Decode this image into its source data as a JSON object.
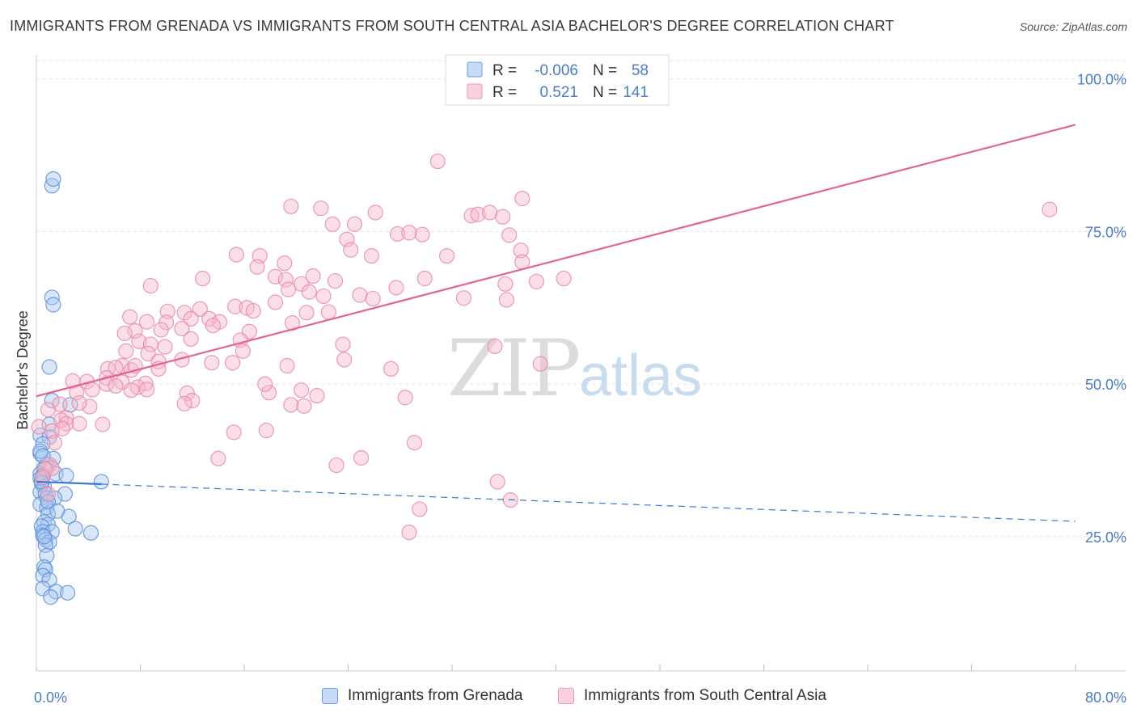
{
  "header": {
    "title": "IMMIGRANTS FROM GRENADA VS IMMIGRANTS FROM SOUTH CENTRAL ASIA BACHELOR'S DEGREE CORRELATION CHART",
    "source": "Source: ZipAtlas.com"
  },
  "watermark": {
    "zip": "ZIP",
    "atlas": "atlas"
  },
  "stats_box": {
    "rows": [
      {
        "r_label": "R =",
        "r_value": "-0.006",
        "n_label": "N =",
        "n_value": "58"
      },
      {
        "r_label": "R =",
        "r_value": "0.521",
        "n_label": "N =",
        "n_value": "141"
      }
    ]
  },
  "colors": {
    "blue_fill": "#a9c8f0",
    "blue_stroke": "#5b8fd8",
    "blue_line": "#3a78d4",
    "pink_fill": "#f6b8cb",
    "pink_stroke": "#e889a6",
    "pink_line": "#e0668f",
    "axis_text": "#4a7cc7",
    "grid": "#e3e3e3"
  },
  "chart_data": {
    "type": "scatter",
    "title": "IMMIGRANTS FROM GRENADA VS IMMIGRANTS FROM SOUTH CENTRAL ASIA BACHELOR'S DEGREE CORRELATION CHART",
    "xlabel": "",
    "ylabel": "Bachelor's Degree",
    "xlim": [
      0,
      80
    ],
    "ylim": [
      3,
      103
    ],
    "x_ticks_labeled": [
      "0.0%",
      "80.0%"
    ],
    "y_ticks": [
      25,
      50,
      75,
      100
    ],
    "y_tick_labels": [
      "25.0%",
      "50.0%",
      "75.0%",
      "100.0%"
    ],
    "grid": true,
    "legend_position": "bottom",
    "series": [
      {
        "name": "Immigrants from Grenada",
        "color": "blue",
        "R": -0.006,
        "N": 58,
        "trend": {
          "x0": 0,
          "y0": 34.0,
          "x1": 80,
          "y1": 27.5,
          "solid_until_x": 5
        },
        "points": [
          [
            1.2,
            82.5
          ],
          [
            1.3,
            83.6
          ],
          [
            1.2,
            64.2
          ],
          [
            1.3,
            63.0
          ],
          [
            1.0,
            52.8
          ],
          [
            1.2,
            47.3
          ],
          [
            2.6,
            46.6
          ],
          [
            1.0,
            43.4
          ],
          [
            0.3,
            41.6
          ],
          [
            1.0,
            41.3
          ],
          [
            0.5,
            40.2
          ],
          [
            0.3,
            38.6
          ],
          [
            1.3,
            37.8
          ],
          [
            0.8,
            36.8
          ],
          [
            0.6,
            36.2
          ],
          [
            0.3,
            35.3
          ],
          [
            0.5,
            35.0
          ],
          [
            1.5,
            35.3
          ],
          [
            2.3,
            35.0
          ],
          [
            0.3,
            34.5
          ],
          [
            0.4,
            33.7
          ],
          [
            5.0,
            34.0
          ],
          [
            0.6,
            33.2
          ],
          [
            0.3,
            32.3
          ],
          [
            0.7,
            32.0
          ],
          [
            2.2,
            32.0
          ],
          [
            0.8,
            31.3
          ],
          [
            1.4,
            31.3
          ],
          [
            0.3,
            30.3
          ],
          [
            0.8,
            29.8
          ],
          [
            0.9,
            28.7
          ],
          [
            2.5,
            28.3
          ],
          [
            0.6,
            27.4
          ],
          [
            0.9,
            27.0
          ],
          [
            0.4,
            26.7
          ],
          [
            3.0,
            26.3
          ],
          [
            0.5,
            25.8
          ],
          [
            1.2,
            25.8
          ],
          [
            4.2,
            25.6
          ],
          [
            0.5,
            25.2
          ],
          [
            0.7,
            24.5
          ],
          [
            1.0,
            24.1
          ],
          [
            0.7,
            23.6
          ],
          [
            0.8,
            21.9
          ],
          [
            0.6,
            20.0
          ],
          [
            0.7,
            19.6
          ],
          [
            0.5,
            18.6
          ],
          [
            1.0,
            17.9
          ],
          [
            0.5,
            16.5
          ],
          [
            1.5,
            16.0
          ],
          [
            2.4,
            15.8
          ],
          [
            1.1,
            15.1
          ],
          [
            0.3,
            39.0
          ],
          [
            0.5,
            38.2
          ],
          [
            0.9,
            30.7
          ],
          [
            1.6,
            29.2
          ],
          [
            0.4,
            34.0
          ],
          [
            0.6,
            25.0
          ]
        ]
      },
      {
        "name": "Immigrants from South Central Asia",
        "color": "pink",
        "R": 0.521,
        "N": 141,
        "trend": {
          "x0": 0,
          "y0": 48.0,
          "x1": 80,
          "y1": 92.5
        },
        "points": [
          [
            30.9,
            86.5
          ],
          [
            78.0,
            78.6
          ],
          [
            37.4,
            80.4
          ],
          [
            19.6,
            79.1
          ],
          [
            21.9,
            78.8
          ],
          [
            26.1,
            78.1
          ],
          [
            33.5,
            77.6
          ],
          [
            35.9,
            77.4
          ],
          [
            34.0,
            77.8
          ],
          [
            34.9,
            78.1
          ],
          [
            22.8,
            76.2
          ],
          [
            24.5,
            76.2
          ],
          [
            29.7,
            74.5
          ],
          [
            27.8,
            74.6
          ],
          [
            28.7,
            74.8
          ],
          [
            36.4,
            74.4
          ],
          [
            23.9,
            73.7
          ],
          [
            24.2,
            72.0
          ],
          [
            37.3,
            71.9
          ],
          [
            15.4,
            71.2
          ],
          [
            17.2,
            71.0
          ],
          [
            25.8,
            71.0
          ],
          [
            31.6,
            71.0
          ],
          [
            19.1,
            69.8
          ],
          [
            37.4,
            70.0
          ],
          [
            17.0,
            69.2
          ],
          [
            12.8,
            67.3
          ],
          [
            18.4,
            67.6
          ],
          [
            19.2,
            67.1
          ],
          [
            21.3,
            67.7
          ],
          [
            29.9,
            67.3
          ],
          [
            8.8,
            66.1
          ],
          [
            20.4,
            66.4
          ],
          [
            23.0,
            66.9
          ],
          [
            27.7,
            65.8
          ],
          [
            38.5,
            66.8
          ],
          [
            40.6,
            67.3
          ],
          [
            36.1,
            66.4
          ],
          [
            19.4,
            65.5
          ],
          [
            21.0,
            65.1
          ],
          [
            24.9,
            64.6
          ],
          [
            25.9,
            64.0
          ],
          [
            32.9,
            64.1
          ],
          [
            22.1,
            64.4
          ],
          [
            18.4,
            63.4
          ],
          [
            15.3,
            62.7
          ],
          [
            16.2,
            62.5
          ],
          [
            12.6,
            62.3
          ],
          [
            16.7,
            62.0
          ],
          [
            10.1,
            61.9
          ],
          [
            11.4,
            61.7
          ],
          [
            20.8,
            61.7
          ],
          [
            22.5,
            61.8
          ],
          [
            7.2,
            61.0
          ],
          [
            8.5,
            60.2
          ],
          [
            10.0,
            60.1
          ],
          [
            11.9,
            60.7
          ],
          [
            13.3,
            60.7
          ],
          [
            14.1,
            60.2
          ],
          [
            19.7,
            60.0
          ],
          [
            13.6,
            59.6
          ],
          [
            9.6,
            58.9
          ],
          [
            11.2,
            59.1
          ],
          [
            7.6,
            58.7
          ],
          [
            6.8,
            58.3
          ],
          [
            16.4,
            58.6
          ],
          [
            11.9,
            57.4
          ],
          [
            15.7,
            57.2
          ],
          [
            7.9,
            57.0
          ],
          [
            8.8,
            56.5
          ],
          [
            23.6,
            56.5
          ],
          [
            6.9,
            55.4
          ],
          [
            15.9,
            55.4
          ],
          [
            8.6,
            55.0
          ],
          [
            23.7,
            54.0
          ],
          [
            11.2,
            54.0
          ],
          [
            13.5,
            53.5
          ],
          [
            15.1,
            53.5
          ],
          [
            9.4,
            53.7
          ],
          [
            6.6,
            53.0
          ],
          [
            5.5,
            52.5
          ],
          [
            7.3,
            52.3
          ],
          [
            6.1,
            52.7
          ],
          [
            9.4,
            52.5
          ],
          [
            19.3,
            53.0
          ],
          [
            38.8,
            53.3
          ],
          [
            5.4,
            51.0
          ],
          [
            6.6,
            50.3
          ],
          [
            8.4,
            50.1
          ],
          [
            5.4,
            50.0
          ],
          [
            2.8,
            50.5
          ],
          [
            3.9,
            50.4
          ],
          [
            6.1,
            49.7
          ],
          [
            7.8,
            49.5
          ],
          [
            7.3,
            49.0
          ],
          [
            4.3,
            49.1
          ],
          [
            8.5,
            49.1
          ],
          [
            17.9,
            48.6
          ],
          [
            3.1,
            48.6
          ],
          [
            11.6,
            48.5
          ],
          [
            21.6,
            48.1
          ],
          [
            28.4,
            47.8
          ],
          [
            12.0,
            47.3
          ],
          [
            11.4,
            46.8
          ],
          [
            19.6,
            46.6
          ],
          [
            20.6,
            46.4
          ],
          [
            4.1,
            46.3
          ],
          [
            3.3,
            46.9
          ],
          [
            1.8,
            46.7
          ],
          [
            0.9,
            45.8
          ],
          [
            2.3,
            44.5
          ],
          [
            1.9,
            44.1
          ],
          [
            2.3,
            43.5
          ],
          [
            3.3,
            43.5
          ],
          [
            2.0,
            42.7
          ],
          [
            5.1,
            43.4
          ],
          [
            0.2,
            43.0
          ],
          [
            1.2,
            42.3
          ],
          [
            15.2,
            42.1
          ],
          [
            17.7,
            42.4
          ],
          [
            29.1,
            40.4
          ],
          [
            1.4,
            40.4
          ],
          [
            25.0,
            37.9
          ],
          [
            14.0,
            37.8
          ],
          [
            23.1,
            36.7
          ],
          [
            1.0,
            36.8
          ],
          [
            1.2,
            36.2
          ],
          [
            0.7,
            36.1
          ],
          [
            0.5,
            34.7
          ],
          [
            0.9,
            32.0
          ],
          [
            35.5,
            34.0
          ],
          [
            36.5,
            31.0
          ],
          [
            29.5,
            29.5
          ],
          [
            28.7,
            25.7
          ],
          [
            17.6,
            50.0
          ],
          [
            20.4,
            49.0
          ],
          [
            27.3,
            52.5
          ],
          [
            7.6,
            53.0
          ],
          [
            9.9,
            56.1
          ],
          [
            35.3,
            56.2
          ],
          [
            36.2,
            63.8
          ]
        ]
      }
    ]
  },
  "bottom_legend": {
    "items": [
      {
        "label": "Immigrants from Grenada"
      },
      {
        "label": "Immigrants from South Central Asia"
      }
    ]
  }
}
